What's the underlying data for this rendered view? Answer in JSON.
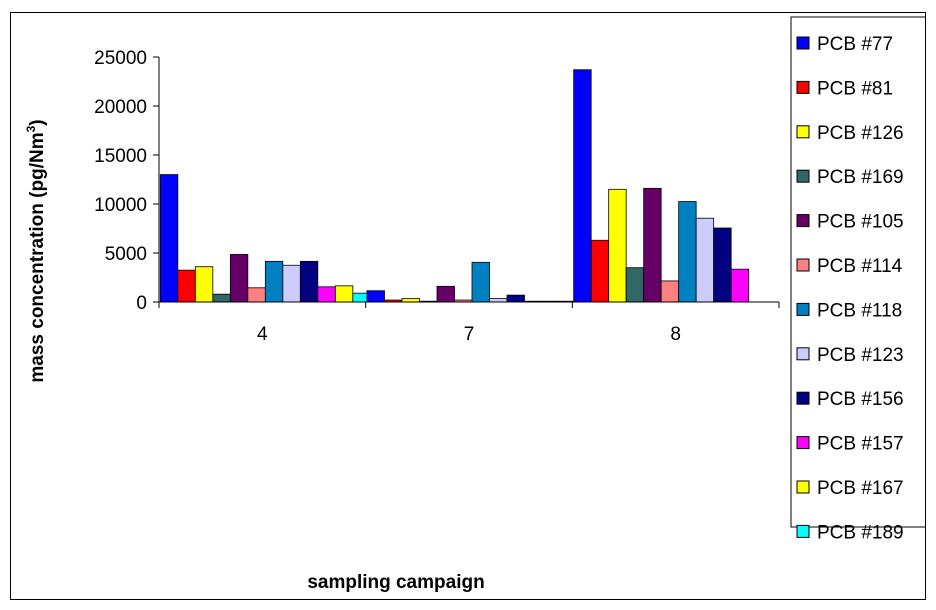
{
  "chart_data": {
    "type": "bar",
    "title": "",
    "xlabel": "sampling campaign",
    "ylabel": "mass concentration (pg/Nm",
    "ylabel_superscript": "3",
    "ylabel_suffix": ")",
    "ylim": [
      0,
      25000
    ],
    "yticks": [
      "0",
      "5000",
      "10000",
      "15000",
      "20000",
      "25000"
    ],
    "categories": [
      "4",
      "7",
      "8"
    ],
    "grid": false,
    "legend_position": "right",
    "series": [
      {
        "name": "PCB #77",
        "color": "#0000ff",
        "values": [
          13000,
          1150,
          23700
        ]
      },
      {
        "name": "PCB #81",
        "color": "#ff0000",
        "values": [
          3250,
          200,
          6300
        ]
      },
      {
        "name": "PCB #126",
        "color": "#ffff00",
        "values": [
          3600,
          350,
          11500
        ]
      },
      {
        "name": "PCB #169",
        "color": "#336666",
        "values": [
          800,
          80,
          3500
        ]
      },
      {
        "name": "PCB #105",
        "color": "#660066",
        "values": [
          4850,
          1600,
          11600
        ]
      },
      {
        "name": "PCB #114",
        "color": "#ff8080",
        "values": [
          1450,
          200,
          2150
        ]
      },
      {
        "name": "PCB #118",
        "color": "#0080c0",
        "values": [
          4150,
          4050,
          10250
        ]
      },
      {
        "name": "PCB #123",
        "color": "#ccccff",
        "values": [
          3750,
          350,
          8550
        ]
      },
      {
        "name": "PCB #156",
        "color": "#000080",
        "values": [
          4150,
          700,
          7550
        ]
      },
      {
        "name": "PCB #157",
        "color": "#ff00ff",
        "values": [
          1550,
          80,
          3350
        ]
      },
      {
        "name": "PCB #167",
        "color": "#ffff00",
        "values": [
          1650,
          80,
          0
        ]
      },
      {
        "name": "PCB #189",
        "color": "#00ffff",
        "values": [
          900,
          80,
          0
        ]
      }
    ]
  }
}
